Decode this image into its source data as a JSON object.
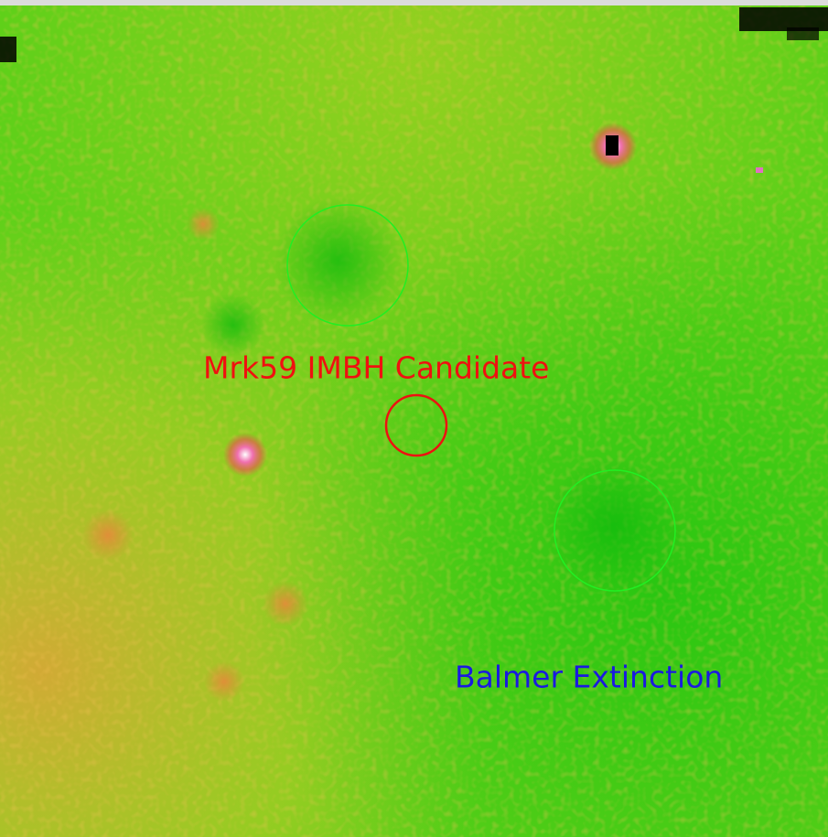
{
  "labels": {
    "candidate": "Mrk59 IMBH Candidate",
    "extinction": "Balmer Extinction"
  }
}
